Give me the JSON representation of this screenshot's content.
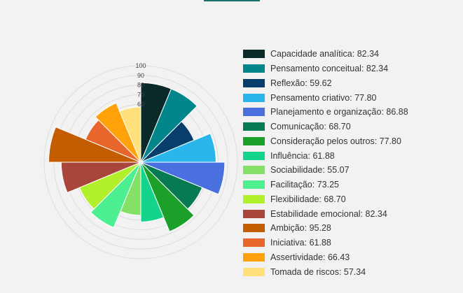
{
  "chart_data": {
    "type": "polarArea",
    "rlim": [
      0,
      100
    ],
    "grid": true,
    "legend_position": "right",
    "tick_labels": [
      "100",
      "90",
      "80",
      "70",
      "60"
    ],
    "categories": [
      "Capacidade analítica",
      "Pensamento conceitual",
      "Reflexão",
      "Pensamento criativo",
      "Planejamento e organização",
      "Comunicação",
      "Consideração pelos outros",
      "Influência",
      "Sociabilidade",
      "Facilitação",
      "Flexibilidade",
      "Estabilidade emocional",
      "Ambição",
      "Iniciativa",
      "Assertividade",
      "Tomada de riscos"
    ],
    "values": [
      82.34,
      82.34,
      59.62,
      77.8,
      86.88,
      68.7,
      77.8,
      61.88,
      55.07,
      73.25,
      68.7,
      82.34,
      95.28,
      61.88,
      66.43,
      57.34
    ],
    "legend_labels": [
      "Capacidade analítica: 82.34",
      "Pensamento conceitual: 82.34",
      "Reflexão: 59.62",
      "Pensamento criativo: 77.80",
      "Planejamento e organização: 86.88",
      "Comunicação: 68.70",
      "Consideração pelos outros: 77.80",
      "Influência: 61.88",
      "Sociabilidade: 55.07",
      "Facilitação: 73.25",
      "Flexibilidade: 68.70",
      "Estabilidade emocional: 82.34",
      "Ambição: 95.28",
      "Iniciativa: 61.88",
      "Assertividade: 66.43",
      "Tomada de riscos: 57.34"
    ],
    "colors": [
      "#0a2a2a",
      "#00868b",
      "#083e6b",
      "#29b6ea",
      "#4a6fde",
      "#067a50",
      "#1ba12a",
      "#14d38a",
      "#85e068",
      "#4def90",
      "#b2f02e",
      "#a8463c",
      "#c45c00",
      "#e8652b",
      "#ffa20a",
      "#ffe07a"
    ]
  }
}
